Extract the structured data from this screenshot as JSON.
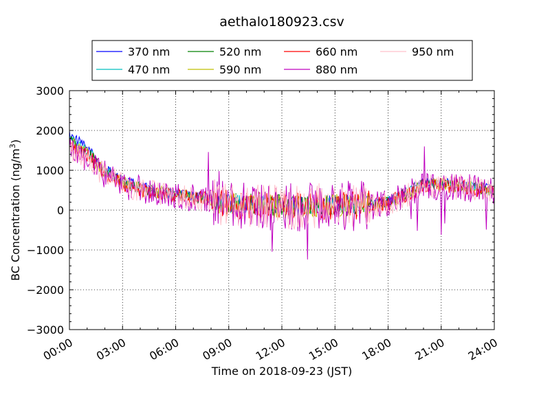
{
  "chart_data": {
    "type": "line",
    "title": "aethalo180923.csv",
    "xlabel": "Time on 2018-09-23 (JST)",
    "ylabel_main": "BC Concentration (ng/m",
    "ylabel_sup": "3",
    "ylabel_close": ")",
    "xlim": [
      "00:00",
      "24:00"
    ],
    "ylim": [
      -3000,
      3000
    ],
    "x_ticks": [
      "00:00",
      "03:00",
      "06:00",
      "09:00",
      "12:00",
      "15:00",
      "18:00",
      "21:00",
      "24:00"
    ],
    "y_ticks": [
      "3000",
      "2000",
      "1000",
      "0",
      "−1000",
      "−2000",
      "−3000"
    ],
    "grid": true,
    "legend_placement": "top-center",
    "x_hours": [
      0,
      1,
      2,
      3,
      4,
      5,
      6,
      7,
      8,
      9,
      10,
      11,
      12,
      13,
      14,
      15,
      16,
      17,
      18,
      19,
      20,
      21,
      22,
      23,
      24
    ],
    "series": [
      {
        "name": "370 nm",
        "color": "#0000ff",
        "noise": 0.6,
        "values": [
          1900,
          1550,
          1050,
          750,
          600,
          480,
          400,
          350,
          300,
          180,
          150,
          170,
          130,
          110,
          140,
          150,
          140,
          170,
          220,
          450,
          700,
          700,
          650,
          600,
          500
        ]
      },
      {
        "name": "470 nm",
        "color": "#00bfbf",
        "noise": 0.6,
        "values": [
          1800,
          1500,
          1000,
          720,
          580,
          460,
          390,
          340,
          290,
          170,
          140,
          160,
          120,
          100,
          130,
          140,
          130,
          160,
          210,
          430,
          680,
          680,
          630,
          580,
          480
        ]
      },
      {
        "name": "520 nm",
        "color": "#008000",
        "noise": 0.7,
        "values": [
          1750,
          1450,
          980,
          700,
          560,
          450,
          380,
          330,
          280,
          160,
          130,
          150,
          110,
          95,
          125,
          135,
          125,
          155,
          200,
          420,
          660,
          660,
          620,
          570,
          470
        ]
      },
      {
        "name": "590 nm",
        "color": "#bfbf00",
        "noise": 0.8,
        "values": [
          1700,
          1400,
          950,
          680,
          540,
          440,
          370,
          320,
          270,
          150,
          120,
          140,
          100,
          90,
          120,
          130,
          120,
          150,
          190,
          400,
          640,
          640,
          600,
          550,
          460
        ]
      },
      {
        "name": "660 nm",
        "color": "#ff0000",
        "noise": 0.9,
        "values": [
          1680,
          1380,
          930,
          660,
          530,
          430,
          360,
          310,
          260,
          140,
          110,
          130,
          90,
          80,
          110,
          120,
          110,
          140,
          180,
          390,
          620,
          620,
          590,
          540,
          450
        ]
      },
      {
        "name": "880 nm",
        "color": "#bf00bf",
        "noise": 1.6,
        "values": [
          1600,
          1300,
          900,
          650,
          520,
          420,
          350,
          300,
          250,
          130,
          100,
          120,
          80,
          70,
          100,
          110,
          100,
          130,
          170,
          380,
          600,
          600,
          580,
          530,
          440
        ]
      },
      {
        "name": "950 nm",
        "color": "#ffc0cb",
        "noise": 1.4,
        "values": [
          1550,
          1250,
          880,
          640,
          510,
          410,
          340,
          290,
          240,
          120,
          90,
          110,
          70,
          60,
          90,
          100,
          90,
          120,
          160,
          370,
          580,
          580,
          560,
          520,
          430
        ]
      }
    ]
  }
}
